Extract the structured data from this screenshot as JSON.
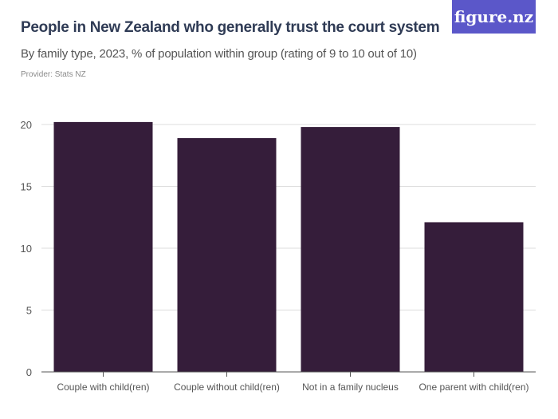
{
  "header": {
    "title": "People in New Zealand who generally trust the court system",
    "subtitle": "By family type, 2023, % of population within group (rating of 9 to 10 out of 10)",
    "provider": "Provider: Stats NZ",
    "logo": "figure.nz"
  },
  "colors": {
    "bar": "#351d3a",
    "grid": "#dddddd",
    "axis": "#555555",
    "logo_bg": "#5b57c9"
  },
  "chart_data": {
    "type": "bar",
    "categories": [
      "Couple with child(ren)",
      "Couple without child(ren)",
      "Not in a family nucleus",
      "One parent with child(ren)"
    ],
    "values": [
      20.2,
      18.9,
      19.8,
      12.1
    ],
    "title": "People in New Zealand who generally trust the court system",
    "subtitle": "By family type, 2023, % of population within group (rating of 9 to 10 out of 10)",
    "ylim": [
      0,
      20
    ],
    "yticks": [
      0,
      5,
      10,
      15,
      20
    ],
    "grid": true
  }
}
